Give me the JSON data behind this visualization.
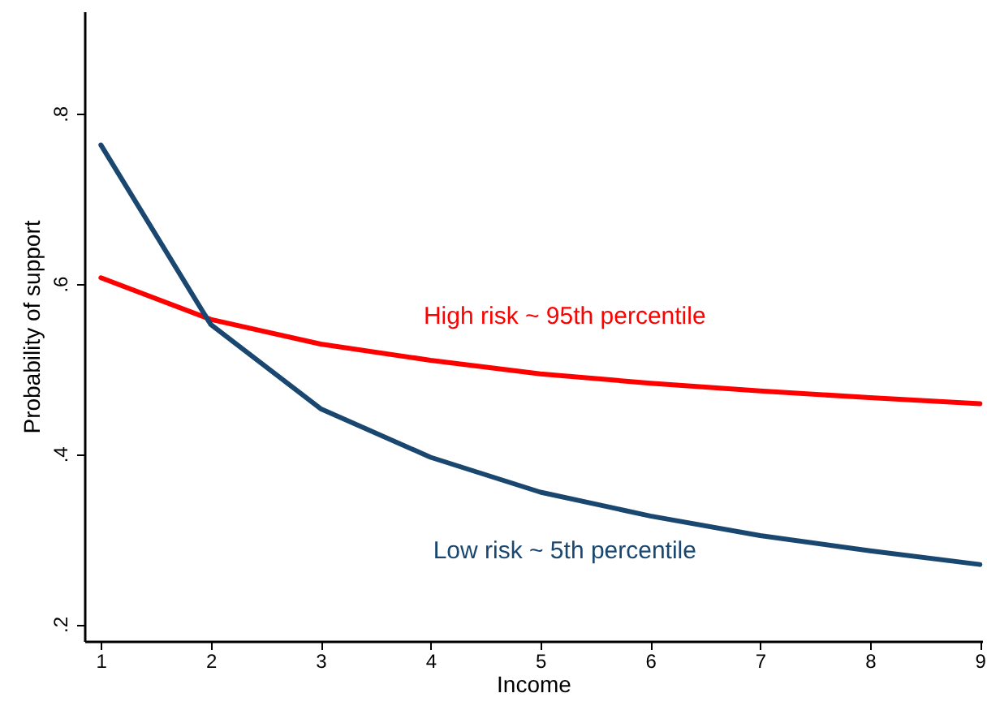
{
  "chart_data": {
    "type": "line",
    "xlabel": "Income",
    "ylabel": "Probability of support",
    "x": [
      1,
      2,
      3,
      4,
      5,
      6,
      7,
      8,
      9
    ],
    "series": [
      {
        "name": "High risk ~ 95th percentile",
        "color": "#ff0000",
        "values": [
          0.607,
          0.558,
          0.529,
          0.51,
          0.494,
          0.483,
          0.474,
          0.466,
          0.459
        ]
      },
      {
        "name": "Low risk ~ 5th percentile",
        "color": "#1a476f",
        "values": [
          0.763,
          0.552,
          0.453,
          0.396,
          0.355,
          0.327,
          0.304,
          0.286,
          0.27
        ]
      }
    ],
    "xlim": [
      0.85,
      9.02
    ],
    "ylim": [
      0.18,
      0.92
    ],
    "xticks": [
      1,
      2,
      3,
      4,
      5,
      6,
      7,
      8,
      9
    ],
    "yticks": [
      {
        "value": 0.2,
        "label": ".2"
      },
      {
        "value": 0.4,
        "label": ".4"
      },
      {
        "value": 0.6,
        "label": ".6"
      },
      {
        "value": 0.8,
        "label": ".8"
      }
    ],
    "grid": false,
    "marker": "none",
    "line_style": "solid"
  }
}
